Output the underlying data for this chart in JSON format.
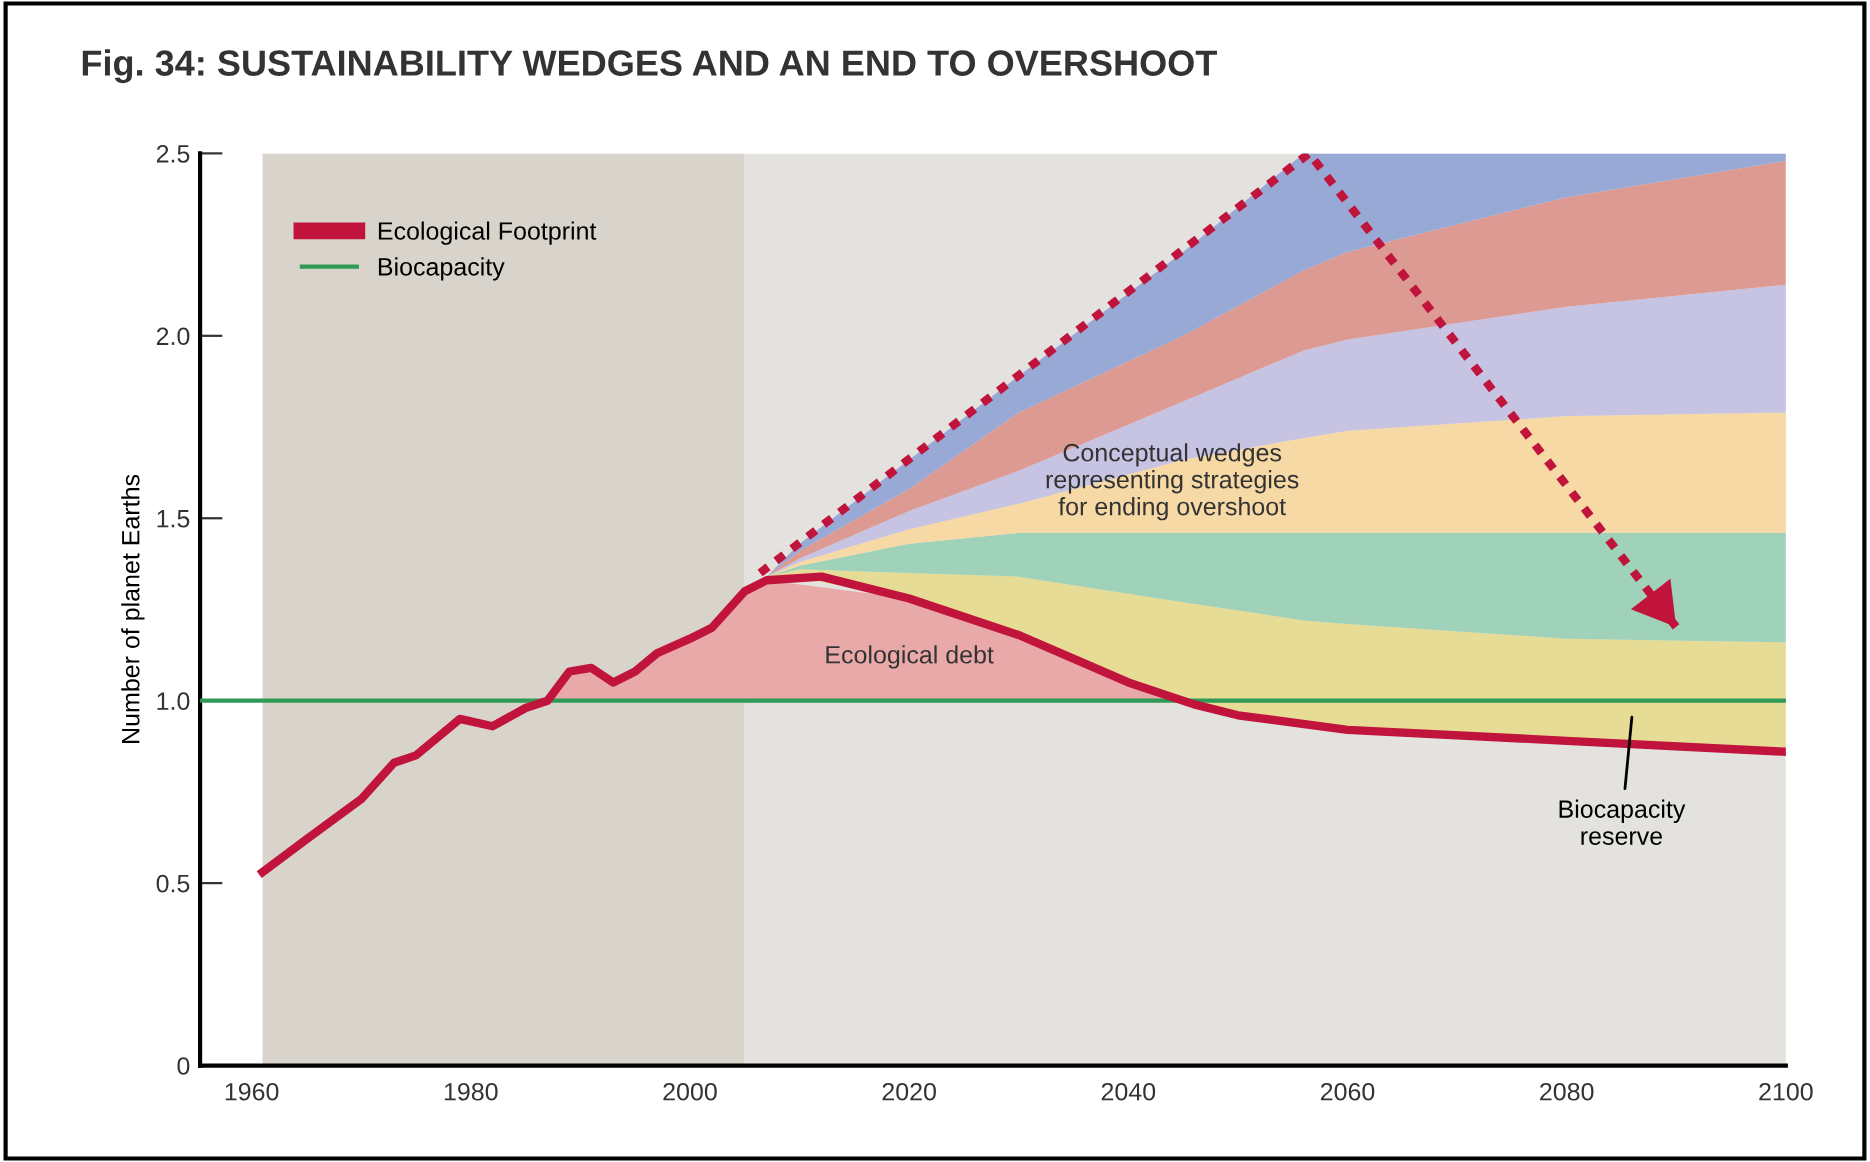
{
  "chart_data": {
    "type": "line",
    "title": "Fig. 34: SUSTAINABILITY WEDGES AND AN END TO OVERSHOOT",
    "ylabel": "Number of planet Earths",
    "xlim": [
      1955.3,
      2100
    ],
    "xticks": [
      1960,
      1980,
      2000,
      2020,
      2040,
      2060,
      2080,
      2100
    ],
    "ylim": [
      0,
      2.5
    ],
    "yticks": [
      0,
      {
        "value": 0.5,
        "label": "0.5"
      },
      {
        "value": 1.0,
        "label": "1.0"
      },
      {
        "value": 1.5,
        "label": "1.5"
      },
      {
        "value": 2.0,
        "label": "2.0"
      },
      {
        "value": 2.5,
        "label": "2.5"
      }
    ],
    "legend": "top left",
    "bands": [
      {
        "axis": "x",
        "from": 1961,
        "to": 2005,
        "color": "#d8d4cc"
      },
      {
        "axis": "x",
        "from": 2005,
        "to": 2100,
        "color": "#e4e2de"
      }
    ],
    "series": [
      {
        "name": "Biocapacity",
        "color": "#2e9a55",
        "x": [
          1955.3,
          2100
        ],
        "values": [
          1.0,
          1.0
        ]
      },
      {
        "type": "area",
        "color": "#e8a9a8",
        "x": [
          1987,
          1989,
          1991,
          1993,
          1995,
          1997,
          2000,
          2002,
          2005,
          2007,
          2020,
          2030,
          2040,
          2046
        ],
        "values": [
          1.0,
          1.08,
          1.09,
          1.05,
          1.08,
          1.13,
          1.17,
          1.2,
          1.3,
          1.33,
          1.28,
          1.18,
          1.05,
          1.0
        ]
      },
      {
        "name": "Ecological Footprint",
        "color": "#c0143c",
        "x": [
          1961,
          1965,
          1970,
          1973,
          1975,
          1979,
          1982,
          1985,
          1987,
          1989,
          1991,
          1993,
          1995,
          1997,
          2000,
          2002,
          2005,
          2007,
          2012,
          2020,
          2030,
          2040,
          2046,
          2050,
          2060,
          2080,
          2100
        ],
        "values": [
          0.53,
          0.62,
          0.73,
          0.83,
          0.85,
          0.95,
          0.93,
          0.98,
          1.0,
          1.08,
          1.09,
          1.05,
          1.08,
          1.13,
          1.17,
          1.2,
          1.3,
          1.33,
          1.34,
          1.28,
          1.18,
          1.05,
          0.99,
          0.96,
          0.92,
          0.89,
          0.86
        ]
      },
      {
        "type": "area",
        "color": "#e6dc96",
        "x": [
          2007,
          2010,
          2020,
          2030,
          2045,
          2056,
          2060,
          2080,
          2100
        ],
        "values": [
          1.34,
          1.36,
          1.35,
          1.34,
          1.27,
          1.22,
          1.21,
          1.17,
          1.16
        ]
      },
      {
        "type": "area",
        "color": "#9fd2b9",
        "x": [
          2007,
          2010,
          2020,
          2030,
          2045,
          2056,
          2060,
          2080,
          2100
        ],
        "values": [
          1.34,
          1.37,
          1.43,
          1.46,
          1.46,
          1.46,
          1.46,
          1.46,
          1.46
        ]
      },
      {
        "type": "area",
        "color": "#f7d9a6",
        "x": [
          2007,
          2010,
          2020,
          2030,
          2045,
          2056,
          2060,
          2080,
          2100
        ],
        "values": [
          1.34,
          1.38,
          1.47,
          1.54,
          1.66,
          1.72,
          1.74,
          1.78,
          1.79
        ]
      },
      {
        "type": "area",
        "color": "#c6c3e3",
        "x": [
          2007,
          2010,
          2020,
          2030,
          2045,
          2056,
          2060,
          2080,
          2100
        ],
        "values": [
          1.34,
          1.39,
          1.52,
          1.63,
          1.82,
          1.96,
          1.99,
          2.08,
          2.14
        ]
      },
      {
        "type": "area",
        "color": "#dc9a93",
        "x": [
          2007,
          2010,
          2020,
          2030,
          2045,
          2056,
          2060,
          2080,
          2100
        ],
        "values": [
          1.34,
          1.41,
          1.58,
          1.79,
          2.0,
          2.18,
          2.23,
          2.38,
          2.48
        ]
      },
      {
        "type": "area",
        "color": "#99a9d6",
        "x": [
          2007,
          2010,
          2020,
          2030,
          2045,
          2056,
          2060,
          2080,
          2100
        ],
        "values": [
          1.34,
          1.43,
          1.66,
          1.89,
          2.23,
          2.5,
          2.5,
          2.5,
          2.5
        ]
      },
      {
        "line_style": "dotted",
        "color": "#c0143c",
        "x": [
          2006.4,
          2056.5,
          2090.3
        ],
        "values": [
          1.35,
          2.5,
          1.19
        ]
      }
    ],
    "annotations": [
      "Ecological debt",
      "Conceptual wedges\nrepresenting strategies\nfor ending overshoot",
      "Biocapacity\nreserve"
    ]
  }
}
